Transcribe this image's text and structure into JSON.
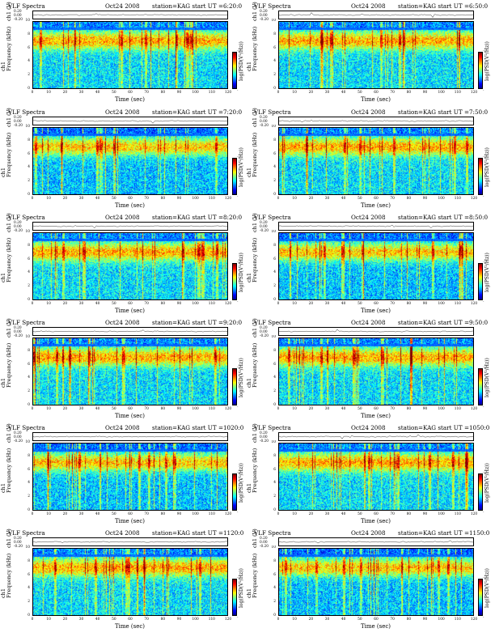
{
  "common": {
    "title": "VLF Spectra",
    "date": "Oct24 2008",
    "station_text": "station=KAG   start  UT",
    "ch_label": "ch1 (V)",
    "y_label_line1": "ch1",
    "y_label_line2": "Frequency  (kHz)",
    "x_label": "Time  (sec)",
    "colorbar_label": "log(PSD(V²/Hz))",
    "ts_ticks": [
      "0.20",
      "0.00",
      "-0.20"
    ],
    "freq_ticks": [
      "0",
      "2",
      "4",
      "6",
      "8",
      "10"
    ],
    "time_ticks": [
      "0",
      "10",
      "20",
      "30",
      "40",
      "50",
      "60",
      "70",
      "80",
      "90",
      "100",
      "110",
      "120"
    ],
    "colorbar_ticks": [
      "-",
      "-"
    ],
    "colormap": [
      "#00008f",
      "#0000ff",
      "#0080ff",
      "#00ffff",
      "#80ff80",
      "#ffff00",
      "#ff8000",
      "#ff0000",
      "#800000"
    ]
  },
  "panels": [
    {
      "start_ut": "=6:20:0"
    },
    {
      "start_ut": "=6:50:0"
    },
    {
      "start_ut": "=7:20:0"
    },
    {
      "start_ut": "=7:50:0"
    },
    {
      "start_ut": "=8:20:0"
    },
    {
      "start_ut": "=8:50:0"
    },
    {
      "start_ut": "=9:20:0"
    },
    {
      "start_ut": "=9:50:0"
    },
    {
      "start_ut": "=1020:0"
    },
    {
      "start_ut": "=1050:0"
    },
    {
      "start_ut": "=1120:0"
    },
    {
      "start_ut": "=1150:0"
    }
  ],
  "chart_data": {
    "type": "heatmap",
    "x_axis": {
      "label": "Time  (sec)",
      "range": [
        0,
        120
      ]
    },
    "y_axis": {
      "label": "Frequency  (kHz)",
      "range": [
        0,
        10
      ]
    },
    "time_series_axis": {
      "label": "ch1 (V)",
      "range": [
        -0.2,
        0.2
      ]
    },
    "colorbar_label": "log(PSD(V²/Hz))",
    "panel_count": 12,
    "layout": "6 rows x 2 columns"
  }
}
